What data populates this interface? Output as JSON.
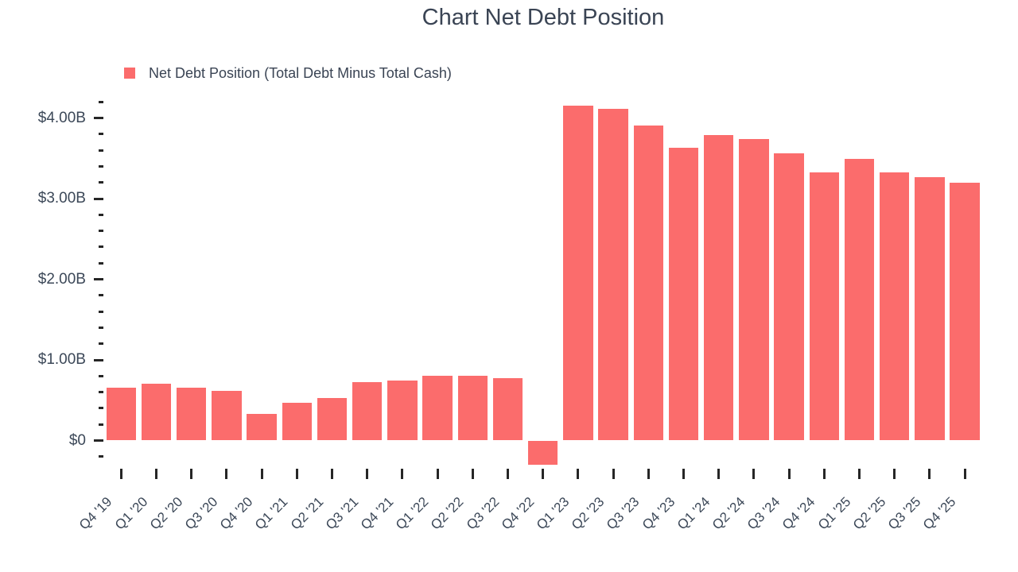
{
  "title": "Chart Net Debt Position",
  "legend": {
    "label": "Net Debt Position (Total Debt Minus Total Cash)",
    "marker_color": "#fb6c6c"
  },
  "colors": {
    "bar": "#fb6c6c",
    "text": "#3a4454",
    "axis_label": "#3c4858",
    "tick": "#262626",
    "background": "#ffffff"
  },
  "chart_data": {
    "type": "bar",
    "title": "Chart Net Debt Position",
    "series_name": "Net Debt Position (Total Debt Minus Total Cash)",
    "unit": "USD billions",
    "categories": [
      "Q4 '19",
      "Q1 '20",
      "Q2 '20",
      "Q3 '20",
      "Q4 '20",
      "Q1 '21",
      "Q2 '21",
      "Q3 '21",
      "Q4 '21",
      "Q1 '22",
      "Q2 '22",
      "Q3 '22",
      "Q4 '22",
      "Q1 '23",
      "Q2 '23",
      "Q3 '23",
      "Q4 '23",
      "Q1 '24",
      "Q2 '24",
      "Q3 '24",
      "Q4 '24",
      "Q1 '25",
      "Q2 '25",
      "Q3 '25",
      "Q4 '25"
    ],
    "values": [
      0.66,
      0.7,
      0.66,
      0.62,
      0.33,
      0.47,
      0.53,
      0.72,
      0.74,
      0.8,
      0.8,
      0.77,
      -0.3,
      4.15,
      4.11,
      3.91,
      3.63,
      3.79,
      3.74,
      3.56,
      3.33,
      3.49,
      3.33,
      3.27,
      3.2
    ],
    "bar_color": "#fb6c6c",
    "xlabel": "",
    "ylabel": "",
    "y_axis": {
      "tick_labels": [
        "$0",
        "$1.00B",
        "$2.00B",
        "$3.00B",
        "$4.00B"
      ],
      "tick_values": [
        0,
        1,
        2,
        3,
        4
      ],
      "minor_tick_step": 0.2,
      "range": [
        -0.4,
        4.25
      ]
    },
    "x_tick_rotation": -45,
    "grid": false,
    "legend_position": "top-left"
  }
}
